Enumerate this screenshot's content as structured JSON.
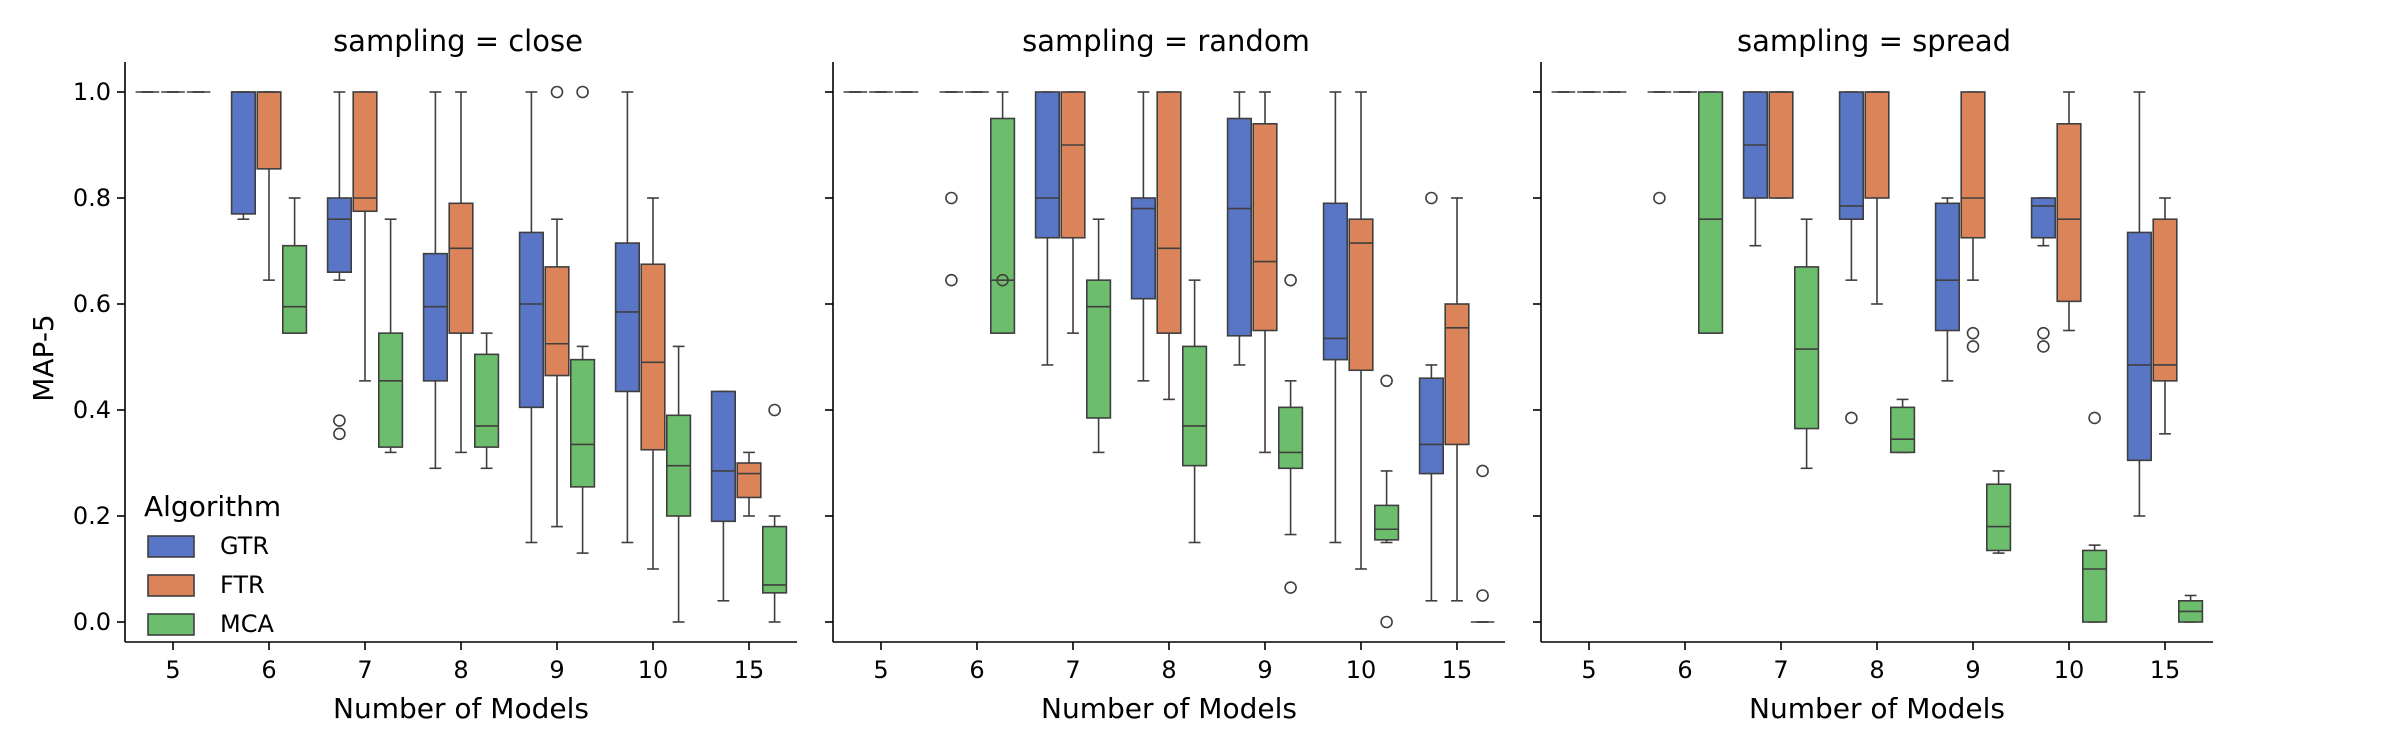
{
  "chart_data": {
    "type": "boxplot",
    "ylabel": "MAP-5",
    "xlabel": "Number of Models",
    "categories": [
      "5",
      "6",
      "7",
      "8",
      "9",
      "10",
      "15"
    ],
    "yticks": [
      "0.0",
      "0.2",
      "0.4",
      "0.6",
      "0.8",
      "1.0"
    ],
    "ylim": [
      -0.05,
      1.05
    ],
    "legend": {
      "title": "Algorithm",
      "position": "lower-left",
      "entries": [
        "GTR",
        "FTR",
        "MCA"
      ]
    },
    "colors": {
      "GTR": "#5875c6",
      "FTR": "#dc8459",
      "MCA": "#6dbe6c"
    },
    "panels": [
      {
        "title": "sampling = close",
        "series": {
          "GTR": [
            {
              "lo": 1.0,
              "q1": 1.0,
              "med": 1.0,
              "q3": 1.0,
              "hi": 1.0,
              "out": []
            },
            {
              "lo": 0.76,
              "q1": 0.77,
              "med": 1.0,
              "q3": 1.0,
              "hi": 1.0,
              "out": []
            },
            {
              "lo": 0.645,
              "q1": 0.66,
              "med": 0.76,
              "q3": 0.8,
              "hi": 1.0,
              "out": [
                0.38,
                0.355
              ]
            },
            {
              "lo": 0.29,
              "q1": 0.455,
              "med": 0.595,
              "q3": 0.695,
              "hi": 1.0,
              "out": []
            },
            {
              "lo": 0.15,
              "q1": 0.405,
              "med": 0.6,
              "q3": 0.735,
              "hi": 1.0,
              "out": []
            },
            {
              "lo": 0.15,
              "q1": 0.435,
              "med": 0.585,
              "q3": 0.715,
              "hi": 1.0,
              "out": []
            },
            {
              "lo": 0.04,
              "q1": 0.19,
              "med": 0.285,
              "q3": 0.435,
              "hi": 0.435,
              "out": []
            }
          ],
          "FTR": [
            {
              "lo": 1.0,
              "q1": 1.0,
              "med": 1.0,
              "q3": 1.0,
              "hi": 1.0,
              "out": []
            },
            {
              "lo": 0.645,
              "q1": 0.855,
              "med": 1.0,
              "q3": 1.0,
              "hi": 1.0,
              "out": []
            },
            {
              "lo": 0.455,
              "q1": 0.775,
              "med": 0.8,
              "q3": 1.0,
              "hi": 1.0,
              "out": []
            },
            {
              "lo": 0.32,
              "q1": 0.545,
              "med": 0.705,
              "q3": 0.79,
              "hi": 1.0,
              "out": []
            },
            {
              "lo": 0.18,
              "q1": 0.465,
              "med": 0.525,
              "q3": 0.67,
              "hi": 0.76,
              "out": [
                1.0
              ]
            },
            {
              "lo": 0.1,
              "q1": 0.325,
              "med": 0.49,
              "q3": 0.675,
              "hi": 0.8,
              "out": []
            },
            {
              "lo": 0.2,
              "q1": 0.235,
              "med": 0.28,
              "q3": 0.3,
              "hi": 0.32,
              "out": []
            }
          ],
          "MCA": [
            {
              "lo": 1.0,
              "q1": 1.0,
              "med": 1.0,
              "q3": 1.0,
              "hi": 1.0,
              "out": []
            },
            {
              "lo": 0.545,
              "q1": 0.545,
              "med": 0.595,
              "q3": 0.71,
              "hi": 0.8,
              "out": []
            },
            {
              "lo": 0.32,
              "q1": 0.33,
              "med": 0.455,
              "q3": 0.545,
              "hi": 0.76,
              "out": []
            },
            {
              "lo": 0.29,
              "q1": 0.33,
              "med": 0.37,
              "q3": 0.505,
              "hi": 0.545,
              "out": []
            },
            {
              "lo": 0.13,
              "q1": 0.255,
              "med": 0.335,
              "q3": 0.495,
              "hi": 0.52,
              "out": [
                1.0
              ]
            },
            {
              "lo": 0.0,
              "q1": 0.2,
              "med": 0.295,
              "q3": 0.39,
              "hi": 0.52,
              "out": []
            },
            {
              "lo": 0.0,
              "q1": 0.055,
              "med": 0.07,
              "q3": 0.18,
              "hi": 0.2,
              "out": [
                0.4
              ]
            }
          ]
        }
      },
      {
        "title": "sampling = random",
        "series": {
          "GTR": [
            {
              "lo": 1.0,
              "q1": 1.0,
              "med": 1.0,
              "q3": 1.0,
              "hi": 1.0,
              "out": []
            },
            {
              "lo": 1.0,
              "q1": 1.0,
              "med": 1.0,
              "q3": 1.0,
              "hi": 1.0,
              "out": [
                0.8,
                0.645
              ]
            },
            {
              "lo": 0.485,
              "q1": 0.725,
              "med": 0.8,
              "q3": 1.0,
              "hi": 1.0,
              "out": []
            },
            {
              "lo": 0.455,
              "q1": 0.61,
              "med": 0.78,
              "q3": 0.8,
              "hi": 1.0,
              "out": []
            },
            {
              "lo": 0.485,
              "q1": 0.54,
              "med": 0.78,
              "q3": 0.95,
              "hi": 1.0,
              "out": []
            },
            {
              "lo": 0.15,
              "q1": 0.495,
              "med": 0.535,
              "q3": 0.79,
              "hi": 1.0,
              "out": []
            },
            {
              "lo": 0.04,
              "q1": 0.28,
              "med": 0.335,
              "q3": 0.46,
              "hi": 0.485,
              "out": [
                0.8
              ]
            }
          ],
          "FTR": [
            {
              "lo": 1.0,
              "q1": 1.0,
              "med": 1.0,
              "q3": 1.0,
              "hi": 1.0,
              "out": []
            },
            {
              "lo": 1.0,
              "q1": 1.0,
              "med": 1.0,
              "q3": 1.0,
              "hi": 1.0,
              "out": []
            },
            {
              "lo": 0.545,
              "q1": 0.725,
              "med": 0.9,
              "q3": 1.0,
              "hi": 1.0,
              "out": []
            },
            {
              "lo": 0.42,
              "q1": 0.545,
              "med": 0.705,
              "q3": 1.0,
              "hi": 1.0,
              "out": []
            },
            {
              "lo": 0.32,
              "q1": 0.55,
              "med": 0.68,
              "q3": 0.94,
              "hi": 1.0,
              "out": []
            },
            {
              "lo": 0.1,
              "q1": 0.475,
              "med": 0.715,
              "q3": 0.76,
              "hi": 1.0,
              "out": []
            },
            {
              "lo": 0.04,
              "q1": 0.335,
              "med": 0.555,
              "q3": 0.6,
              "hi": 0.8,
              "out": []
            }
          ],
          "MCA": [
            {
              "lo": 1.0,
              "q1": 1.0,
              "med": 1.0,
              "q3": 1.0,
              "hi": 1.0,
              "out": []
            },
            {
              "lo": 0.545,
              "q1": 0.545,
              "med": 0.645,
              "q3": 0.95,
              "hi": 1.0,
              "out": [
                0.645
              ]
            },
            {
              "lo": 0.32,
              "q1": 0.385,
              "med": 0.595,
              "q3": 0.645,
              "hi": 0.76,
              "out": []
            },
            {
              "lo": 0.15,
              "q1": 0.295,
              "med": 0.37,
              "q3": 0.52,
              "hi": 0.645,
              "out": []
            },
            {
              "lo": 0.165,
              "q1": 0.29,
              "med": 0.32,
              "q3": 0.405,
              "hi": 0.455,
              "out": [
                0.645,
                0.065
              ]
            },
            {
              "lo": 0.15,
              "q1": 0.155,
              "med": 0.175,
              "q3": 0.22,
              "hi": 0.285,
              "out": [
                0.455,
                0.0
              ]
            },
            {
              "lo": 0.0,
              "q1": 0.0,
              "med": 0.0,
              "q3": 0.0,
              "hi": 0.0,
              "out": [
                0.285,
                0.05
              ]
            }
          ]
        }
      },
      {
        "title": "sampling = spread",
        "series": {
          "GTR": [
            {
              "lo": 1.0,
              "q1": 1.0,
              "med": 1.0,
              "q3": 1.0,
              "hi": 1.0,
              "out": []
            },
            {
              "lo": 1.0,
              "q1": 1.0,
              "med": 1.0,
              "q3": 1.0,
              "hi": 1.0,
              "out": [
                0.8
              ]
            },
            {
              "lo": 0.71,
              "q1": 0.8,
              "med": 0.9,
              "q3": 1.0,
              "hi": 1.0,
              "out": []
            },
            {
              "lo": 0.645,
              "q1": 0.76,
              "med": 0.785,
              "q3": 1.0,
              "hi": 1.0,
              "out": [
                0.385
              ]
            },
            {
              "lo": 0.455,
              "q1": 0.55,
              "med": 0.645,
              "q3": 0.79,
              "hi": 0.8,
              "out": []
            },
            {
              "lo": 0.71,
              "q1": 0.725,
              "med": 0.785,
              "q3": 0.8,
              "hi": 0.8,
              "out": [
                0.545,
                0.52
              ]
            },
            {
              "lo": 0.2,
              "q1": 0.305,
              "med": 0.485,
              "q3": 0.735,
              "hi": 1.0,
              "out": []
            }
          ],
          "FTR": [
            {
              "lo": 1.0,
              "q1": 1.0,
              "med": 1.0,
              "q3": 1.0,
              "hi": 1.0,
              "out": []
            },
            {
              "lo": 1.0,
              "q1": 1.0,
              "med": 1.0,
              "q3": 1.0,
              "hi": 1.0,
              "out": []
            },
            {
              "lo": 0.8,
              "q1": 0.8,
              "med": 1.0,
              "q3": 1.0,
              "hi": 1.0,
              "out": []
            },
            {
              "lo": 0.6,
              "q1": 0.8,
              "med": 1.0,
              "q3": 1.0,
              "hi": 1.0,
              "out": []
            },
            {
              "lo": 0.645,
              "q1": 0.725,
              "med": 0.8,
              "q3": 1.0,
              "hi": 1.0,
              "out": [
                0.545,
                0.52
              ]
            },
            {
              "lo": 0.55,
              "q1": 0.605,
              "med": 0.76,
              "q3": 0.94,
              "hi": 1.0,
              "out": []
            },
            {
              "lo": 0.355,
              "q1": 0.455,
              "med": 0.485,
              "q3": 0.76,
              "hi": 0.8,
              "out": []
            }
          ],
          "MCA": [
            {
              "lo": 1.0,
              "q1": 1.0,
              "med": 1.0,
              "q3": 1.0,
              "hi": 1.0,
              "out": []
            },
            {
              "lo": 0.545,
              "q1": 0.545,
              "med": 0.76,
              "q3": 1.0,
              "hi": 1.0,
              "out": []
            },
            {
              "lo": 0.29,
              "q1": 0.365,
              "med": 0.515,
              "q3": 0.67,
              "hi": 0.76,
              "out": []
            },
            {
              "lo": 0.32,
              "q1": 0.32,
              "med": 0.345,
              "q3": 0.405,
              "hi": 0.42,
              "out": []
            },
            {
              "lo": 0.13,
              "q1": 0.135,
              "med": 0.18,
              "q3": 0.26,
              "hi": 0.285,
              "out": []
            },
            {
              "lo": 0.0,
              "q1": 0.0,
              "med": 0.1,
              "q3": 0.135,
              "hi": 0.145,
              "out": [
                0.385
              ]
            },
            {
              "lo": 0.0,
              "q1": 0.0,
              "med": 0.02,
              "q3": 0.04,
              "hi": 0.05,
              "out": []
            }
          ]
        }
      }
    ]
  }
}
